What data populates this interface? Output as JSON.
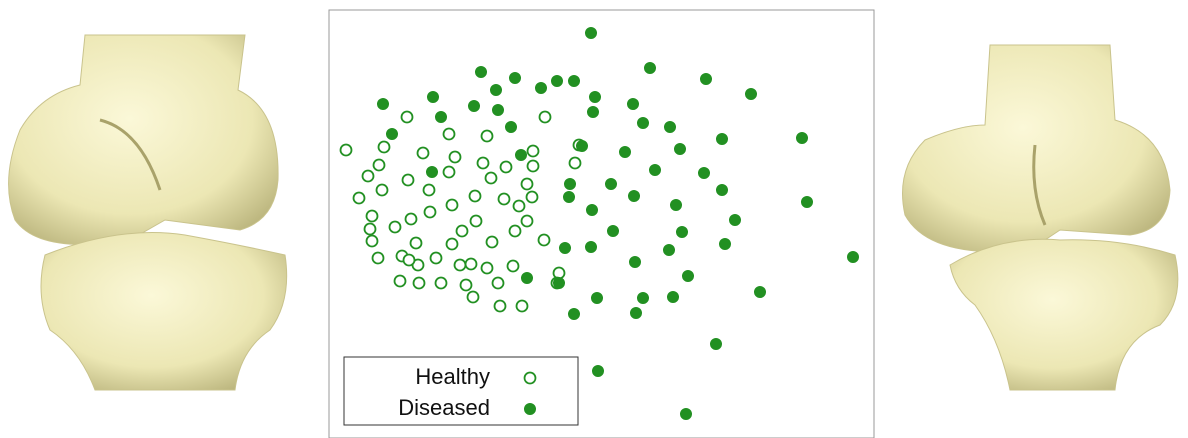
{
  "chart_data": {
    "type": "scatter",
    "xlim": [
      329,
      874
    ],
    "ylim": [
      438,
      10
    ],
    "legend": "lower left",
    "series": [
      {
        "name": "Healthy",
        "color": "#229022",
        "marker": "open",
        "x": [
          346,
          384,
          407,
          449,
          487,
          545,
          379,
          368,
          382,
          359,
          372,
          370,
          372,
          378,
          395,
          402,
          400,
          408,
          411,
          416,
          418,
          423,
          429,
          430,
          436,
          441,
          419,
          449,
          452,
          455,
          460,
          462,
          466,
          473,
          475,
          476,
          483,
          491,
          492,
          487,
          498,
          500,
          504,
          506,
          515,
          513,
          519,
          527,
          527,
          533,
          533,
          575,
          579,
          522,
          544,
          559,
          557,
          532,
          471,
          452,
          409
        ],
        "y": [
          150,
          147,
          117,
          134,
          136,
          117,
          165,
          176,
          190,
          198,
          216,
          229,
          241,
          258,
          227,
          256,
          281,
          180,
          219,
          243,
          265,
          153,
          190,
          212,
          258,
          283,
          283,
          172,
          205,
          157,
          265,
          231,
          285,
          297,
          196,
          221,
          163,
          178,
          242,
          268,
          283,
          306,
          199,
          167,
          231,
          266,
          206,
          184,
          221,
          166,
          151,
          163,
          145,
          306,
          240,
          273,
          283,
          197,
          264,
          244,
          260
        ]
      },
      {
        "name": "Diseased",
        "color": "#229022",
        "marker": "filled",
        "x": [
          591,
          650,
          706,
          751,
          481,
          515,
          496,
          557,
          574,
          541,
          433,
          383,
          474,
          498,
          441,
          595,
          593,
          633,
          643,
          670,
          511,
          392,
          521,
          582,
          625,
          680,
          722,
          802,
          655,
          704,
          570,
          611,
          569,
          634,
          722,
          807,
          676,
          592,
          735,
          432,
          613,
          682,
          565,
          591,
          725,
          669,
          635,
          688,
          527,
          853,
          559,
          760,
          597,
          643,
          673,
          574,
          636,
          716,
          598,
          686
        ],
        "y": [
          33,
          68,
          79,
          94,
          72,
          78,
          90,
          81,
          81,
          88,
          97,
          104,
          106,
          110,
          117,
          97,
          112,
          104,
          123,
          127,
          127,
          134,
          155,
          146,
          152,
          149,
          139,
          138,
          170,
          173,
          184,
          184,
          197,
          196,
          190,
          202,
          205,
          210,
          220,
          172,
          231,
          232,
          248,
          247,
          244,
          250,
          262,
          276,
          278,
          257,
          283,
          292,
          298,
          298,
          297,
          314,
          313,
          344,
          371,
          414
        ]
      }
    ]
  }
}
